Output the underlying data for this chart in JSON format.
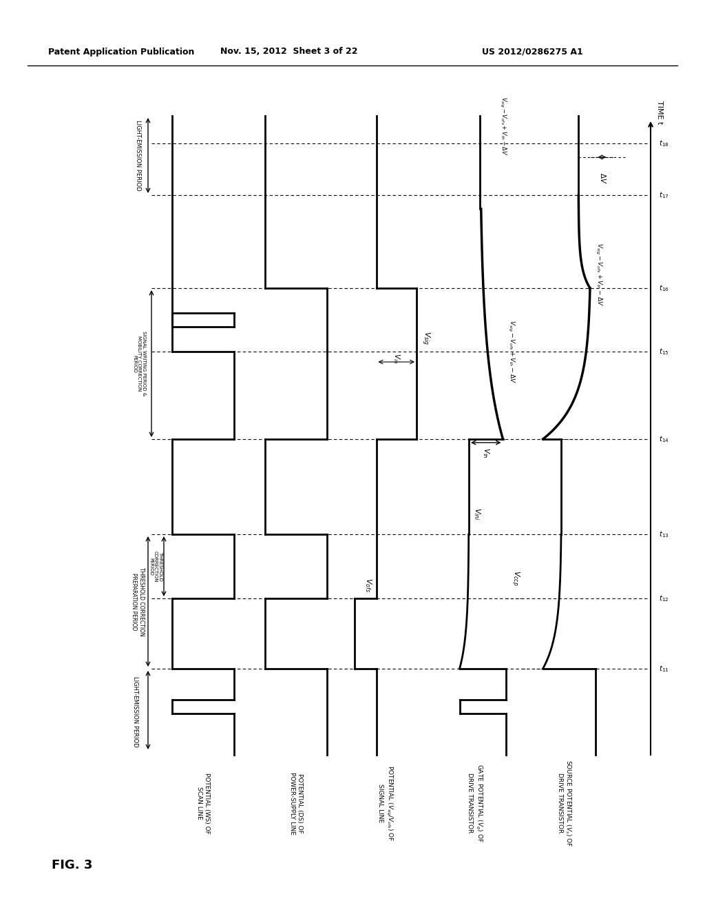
{
  "header_left": "Patent Application Publication",
  "header_mid": "Nov. 15, 2012  Sheet 3 of 22",
  "header_right": "US 2012/0286275 A1",
  "fig_label": "FIG. 3",
  "bg_color": "#ffffff",
  "time_axis_label": "TIME t"
}
